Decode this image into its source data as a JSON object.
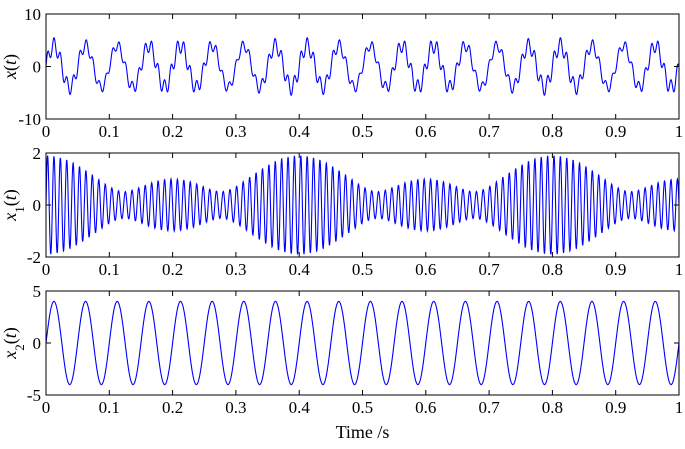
{
  "chart_data": [
    {
      "type": "line",
      "ylabel": "x(t)",
      "xlim": [
        0,
        1
      ],
      "ylim": [
        -10,
        10
      ],
      "x_ticks": [
        "0",
        "0.1",
        "0.2",
        "0.3",
        "0.4",
        "0.5",
        "0.6",
        "0.7",
        "0.8",
        "0.9",
        "1"
      ],
      "y_ticks": [
        "10",
        "0",
        "-10"
      ],
      "grid": false,
      "series": [
        {
          "color": "#0000ff",
          "components": [
            {
              "amplitude": 4,
              "frequency_hz": 20
            },
            {
              "amplitude": 1.2,
              "frequency_hz": 97.5
            },
            {
              "amplitude": 0.3,
              "frequency_hz": 102.5
            }
          ],
          "sample_count": 2000
        }
      ]
    },
    {
      "type": "line",
      "ylabel": "x1(t)",
      "xlim": [
        0,
        1
      ],
      "ylim": [
        -2,
        2
      ],
      "x_ticks": [
        "0",
        "0.1",
        "0.2",
        "0.3",
        "0.4",
        "0.5",
        "0.6",
        "0.7",
        "0.8",
        "0.9",
        "1"
      ],
      "y_ticks": [
        "2",
        "0",
        "-2"
      ],
      "grid": false,
      "series": [
        {
          "color": "#0000ff",
          "components": [
            {
              "amplitude": 1.0,
              "frequency_hz": 97.5
            },
            {
              "amplitude": 0.45,
              "frequency_hz": 100
            },
            {
              "amplitude": 0.45,
              "frequency_hz": 102.5
            }
          ],
          "sample_count": 2000
        }
      ]
    },
    {
      "type": "line",
      "ylabel": "x2(t)",
      "xlabel": "Time /s",
      "xlim": [
        0,
        1
      ],
      "ylim": [
        -5,
        5
      ],
      "x_ticks": [
        "0",
        "0.1",
        "0.2",
        "0.3",
        "0.4",
        "0.5",
        "0.6",
        "0.7",
        "0.8",
        "0.9",
        "1"
      ],
      "y_ticks": [
        "5",
        "0",
        "-5"
      ],
      "grid": false,
      "series": [
        {
          "color": "#0000ff",
          "components": [
            {
              "amplitude": 4,
              "frequency_hz": 20
            }
          ],
          "sample_count": 1000
        }
      ]
    }
  ]
}
